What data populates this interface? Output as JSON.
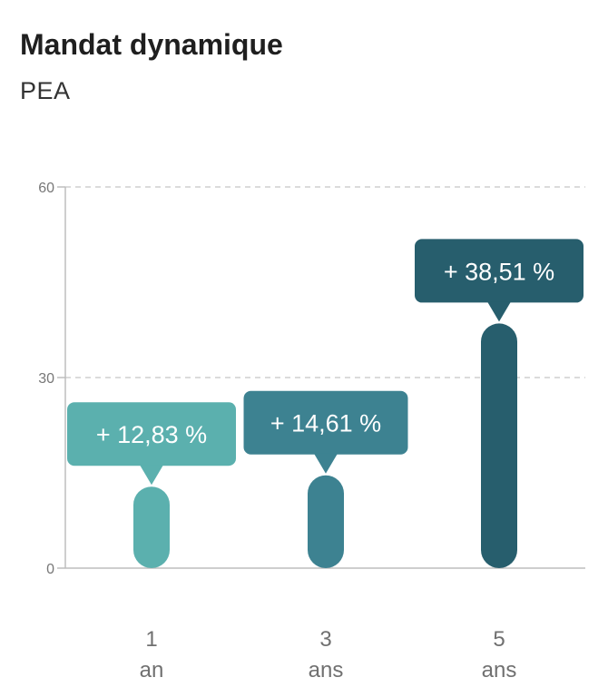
{
  "header": {
    "title": "Mandat dynamique",
    "subtitle": "PEA"
  },
  "chart_data": {
    "type": "bar",
    "categories": [
      {
        "line1": "1",
        "line2": "an"
      },
      {
        "line1": "3",
        "line2": "ans"
      },
      {
        "line1": "5",
        "line2": "ans"
      }
    ],
    "values": [
      12.83,
      14.61,
      38.51
    ],
    "data_labels": [
      "+ 12,83 %",
      "+ 14,61 %",
      "+ 38,51 %"
    ],
    "colors": [
      "#5bb0ae",
      "#3d8291",
      "#275e6d"
    ],
    "ylim": [
      0,
      60
    ],
    "yticks": [
      0,
      30,
      60
    ],
    "grid": true
  }
}
